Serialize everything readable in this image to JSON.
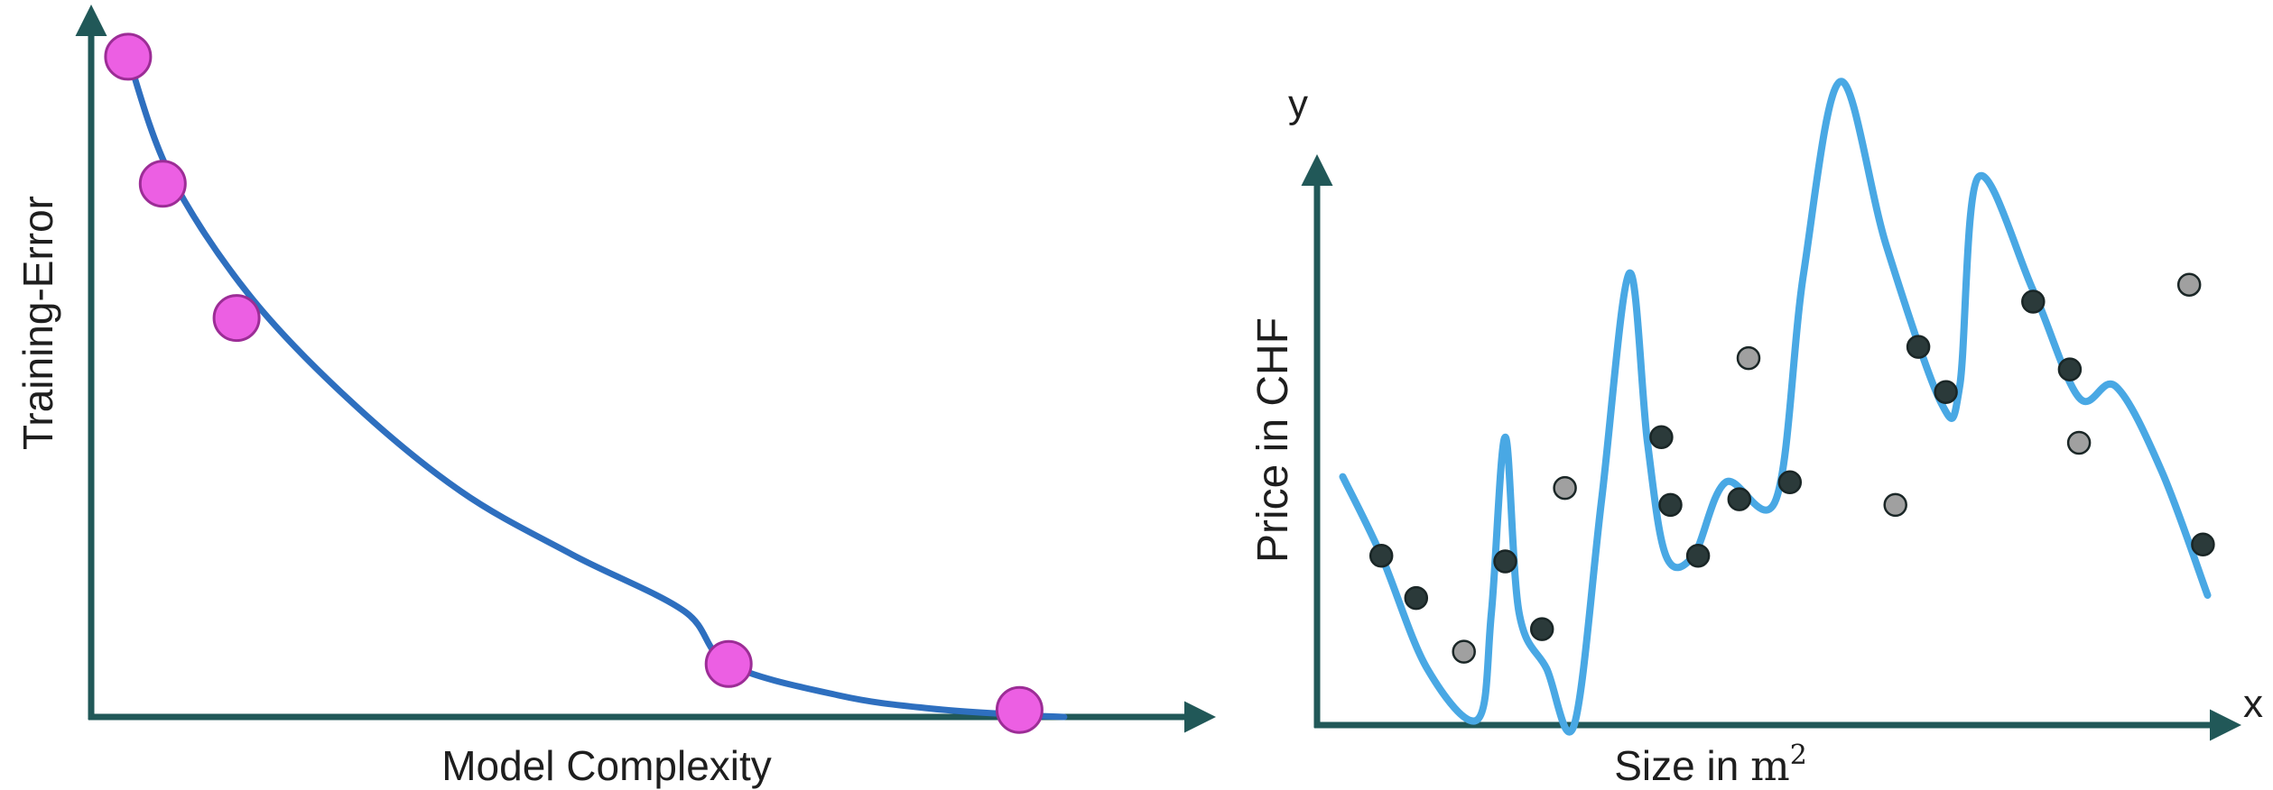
{
  "chart_data": [
    {
      "type": "line",
      "xlabel": "Model Complexity",
      "ylabel": "Training-Error",
      "x_range": [
        0,
        1
      ],
      "y_range": [
        0,
        1
      ],
      "grid": false,
      "series": [
        {
          "kind": "line",
          "color": "#2e6fbf",
          "points": [
            [
              0.033,
              0.935
            ],
            [
              0.07,
              0.77
            ],
            [
              0.14,
              0.6
            ],
            [
              0.23,
              0.45
            ],
            [
              0.33,
              0.32
            ],
            [
              0.43,
              0.23
            ],
            [
              0.53,
              0.15
            ],
            [
              0.57,
              0.075
            ],
            [
              0.67,
              0.03
            ],
            [
              0.75,
              0.012
            ],
            [
              0.83,
              0.003
            ],
            [
              0.87,
              0.0
            ]
          ]
        },
        {
          "kind": "scatter",
          "color": "#ec5fe3",
          "points": [
            [
              0.033,
              0.935
            ],
            [
              0.064,
              0.755
            ],
            [
              0.13,
              0.565
            ],
            [
              0.57,
              0.075
            ],
            [
              0.83,
              0.01
            ]
          ]
        }
      ]
    },
    {
      "type": "scatter",
      "xlabel": "Size in",
      "xlabel_unit": "m",
      "xlabel_unit_sup": "2",
      "ylabel": "Price in CHF",
      "x_corner_label": "x",
      "y_corner_label": "y",
      "x_range": [
        0,
        1
      ],
      "y_range": [
        0,
        1
      ],
      "grid": false,
      "series": [
        {
          "kind": "line",
          "color": "#49a8e4",
          "points": [
            [
              0.028,
              0.44
            ],
            [
              0.07,
              0.3
            ],
            [
              0.12,
              0.1
            ],
            [
              0.175,
              0.01
            ],
            [
              0.19,
              0.2
            ],
            [
              0.205,
              0.51
            ],
            [
              0.22,
              0.2
            ],
            [
              0.25,
              0.1
            ],
            [
              0.28,
              0.0
            ],
            [
              0.31,
              0.4
            ],
            [
              0.34,
              0.8
            ],
            [
              0.36,
              0.5
            ],
            [
              0.38,
              0.3
            ],
            [
              0.41,
              0.3
            ],
            [
              0.445,
              0.43
            ],
            [
              0.5,
              0.4
            ],
            [
              0.53,
              0.8
            ],
            [
              0.57,
              1.14
            ],
            [
              0.62,
              0.85
            ],
            [
              0.68,
              0.57
            ],
            [
              0.7,
              0.6
            ],
            [
              0.72,
              0.97
            ],
            [
              0.78,
              0.77
            ],
            [
              0.83,
              0.58
            ],
            [
              0.87,
              0.6
            ],
            [
              0.92,
              0.45
            ],
            [
              0.97,
              0.23
            ]
          ]
        },
        {
          "kind": "scatter",
          "name": "dark",
          "color": "#2b3a3a",
          "points": [
            [
              0.07,
              0.3
            ],
            [
              0.108,
              0.225
            ],
            [
              0.205,
              0.29
            ],
            [
              0.245,
              0.17
            ],
            [
              0.375,
              0.51
            ],
            [
              0.385,
              0.39
            ],
            [
              0.415,
              0.3
            ],
            [
              0.46,
              0.4
            ],
            [
              0.515,
              0.43
            ],
            [
              0.655,
              0.67
            ],
            [
              0.685,
              0.59
            ],
            [
              0.78,
              0.75
            ],
            [
              0.82,
              0.63
            ],
            [
              0.965,
              0.32
            ]
          ]
        },
        {
          "kind": "scatter",
          "name": "grey",
          "color": "#a0a0a0",
          "points": [
            [
              0.16,
              0.13
            ],
            [
              0.27,
              0.42
            ],
            [
              0.47,
              0.65
            ],
            [
              0.63,
              0.39
            ],
            [
              0.83,
              0.5
            ],
            [
              0.95,
              0.78
            ]
          ]
        }
      ]
    }
  ]
}
